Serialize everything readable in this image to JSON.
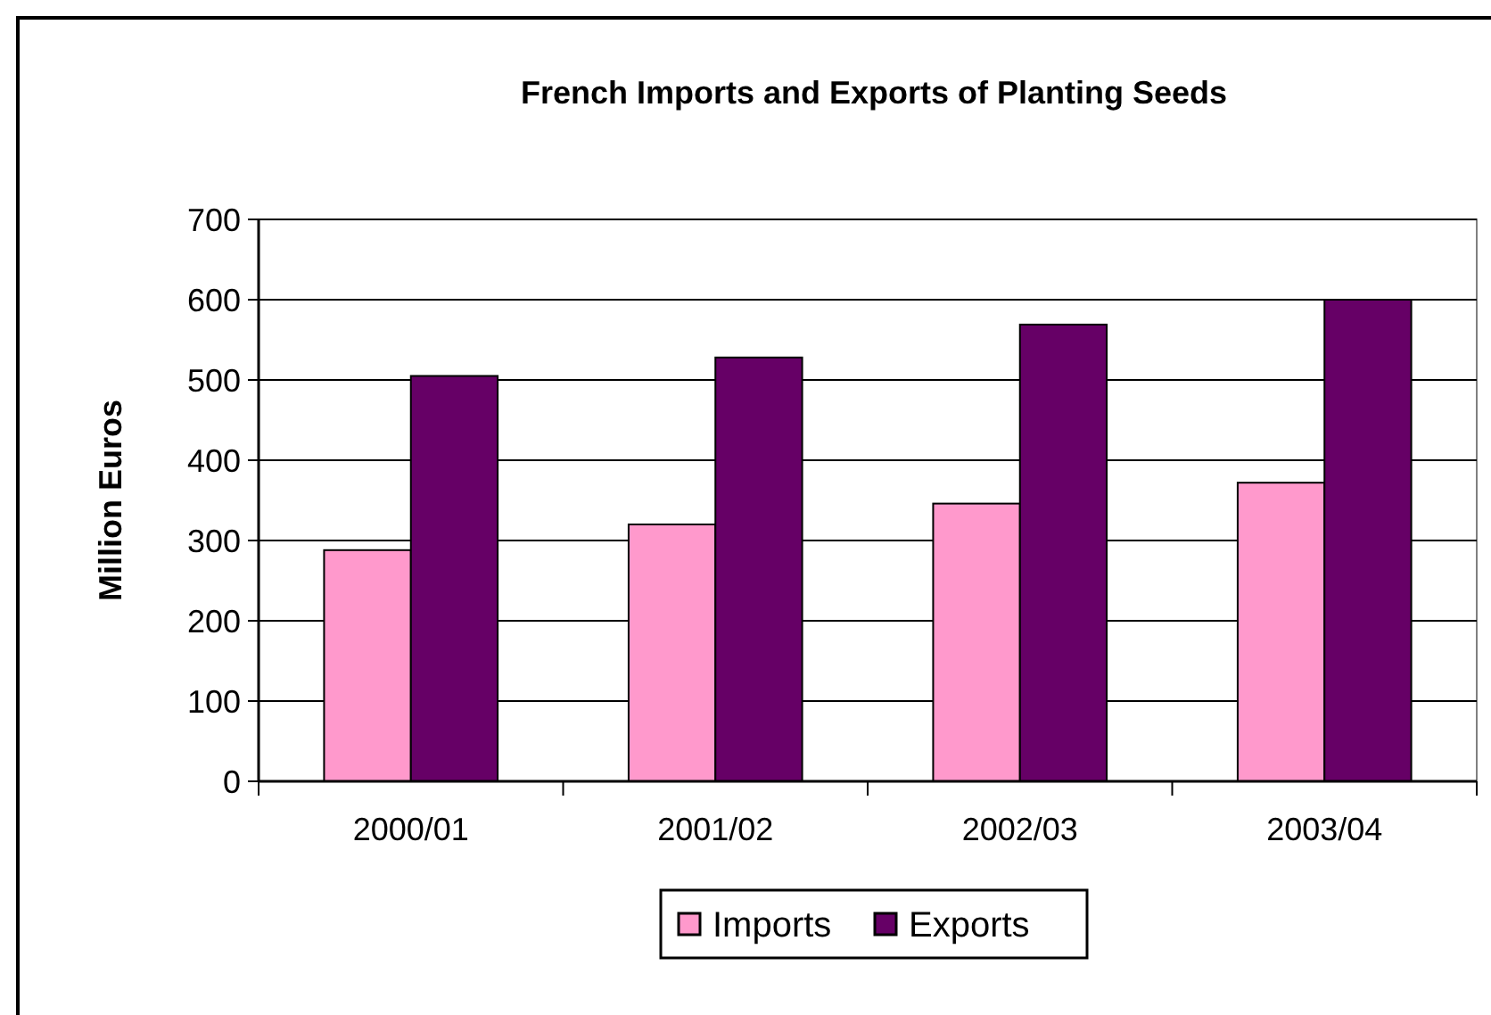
{
  "chart_data": {
    "type": "bar",
    "title": "French Imports and Exports of Planting Seeds",
    "ylabel": "Million Euros",
    "categories": [
      "2000/01",
      "2001/02",
      "2002/03",
      "2003/04"
    ],
    "series": [
      {
        "name": "Imports",
        "color": "#ff99cc",
        "values": [
          288,
          320,
          346,
          372
        ]
      },
      {
        "name": "Exports",
        "color": "#660066",
        "values": [
          505,
          528,
          569,
          600
        ]
      }
    ],
    "ylim": [
      0,
      700
    ],
    "yticks": [
      0,
      100,
      200,
      300,
      400,
      500,
      600,
      700
    ],
    "grid": "y",
    "legend": "bottom"
  }
}
